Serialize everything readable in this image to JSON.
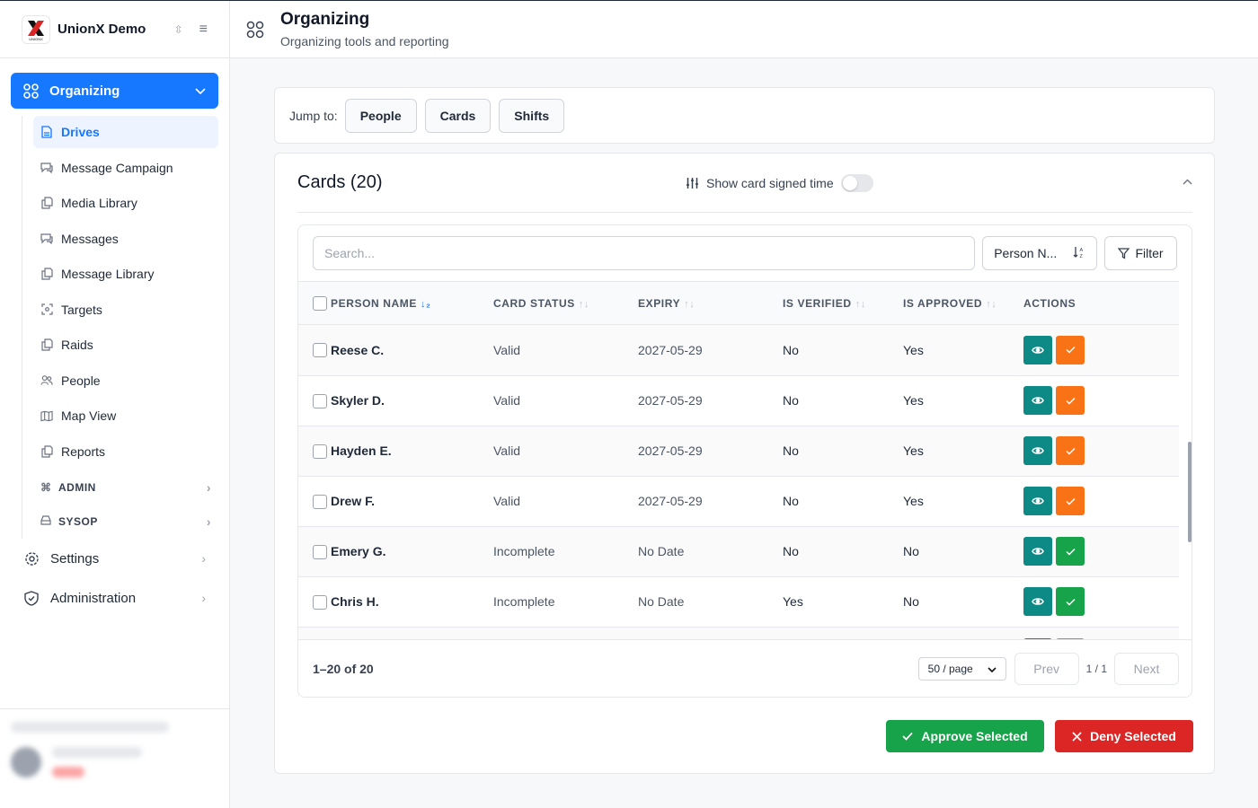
{
  "brand": {
    "name": "UnionX Demo",
    "logo_text": "UNIONX"
  },
  "sidebar": {
    "primary": {
      "label": "Organizing"
    },
    "sub_items": [
      {
        "label": "Drives",
        "icon": "file-icon",
        "active": true
      },
      {
        "label": "Message Campaign",
        "icon": "chat-icon"
      },
      {
        "label": "Media Library",
        "icon": "copy-icon"
      },
      {
        "label": "Messages",
        "icon": "chat-icon"
      },
      {
        "label": "Message Library",
        "icon": "copy-icon"
      },
      {
        "label": "Targets",
        "icon": "target-icon"
      },
      {
        "label": "Raids",
        "icon": "copy-icon"
      },
      {
        "label": "People",
        "icon": "users-icon"
      },
      {
        "label": "Map View",
        "icon": "map-icon"
      },
      {
        "label": "Reports",
        "icon": "copy-icon"
      }
    ],
    "groups": [
      {
        "label": "ADMIN",
        "icon": "command-icon"
      },
      {
        "label": "SYSOP",
        "icon": "drive-icon"
      }
    ],
    "main": [
      {
        "label": "Settings",
        "icon": "gear-icon"
      },
      {
        "label": "Administration",
        "icon": "shield-check-icon"
      }
    ]
  },
  "header": {
    "title": "Organizing",
    "subtitle": "Organizing tools and reporting"
  },
  "jump": {
    "label": "Jump to:",
    "buttons": [
      "People",
      "Cards",
      "Shifts"
    ]
  },
  "cards": {
    "title": "Cards (20)",
    "toggle_label": "Show card signed time",
    "search_placeholder": "Search...",
    "sort_label": "Person N...",
    "filter_label": "Filter",
    "columns": [
      "PERSON NAME",
      "CARD STATUS",
      "EXPIRY",
      "IS VERIFIED",
      "IS APPROVED",
      "ACTIONS"
    ],
    "rows": [
      {
        "name": "Reese C.",
        "status": "Valid",
        "expiry": "2027-05-29",
        "verified": "No",
        "approved": "Yes",
        "action_color": "orange"
      },
      {
        "name": "Skyler D.",
        "status": "Valid",
        "expiry": "2027-05-29",
        "verified": "No",
        "approved": "Yes",
        "action_color": "orange"
      },
      {
        "name": "Hayden E.",
        "status": "Valid",
        "expiry": "2027-05-29",
        "verified": "No",
        "approved": "Yes",
        "action_color": "orange"
      },
      {
        "name": "Drew F.",
        "status": "Valid",
        "expiry": "2027-05-29",
        "verified": "No",
        "approved": "Yes",
        "action_color": "orange"
      },
      {
        "name": "Emery G.",
        "status": "Incomplete",
        "expiry": "No Date",
        "verified": "No",
        "approved": "No",
        "action_color": "green"
      },
      {
        "name": "Chris H.",
        "status": "Incomplete",
        "expiry": "No Date",
        "verified": "Yes",
        "approved": "No",
        "action_color": "green"
      }
    ],
    "range": "1–20 of 20",
    "per_page": "50 / page",
    "prev": "Prev",
    "page": "1 / 1",
    "next": "Next",
    "approve_label": "Approve Selected",
    "deny_label": "Deny Selected"
  },
  "colors": {
    "primary": "#1677ff",
    "view": "#0e8a86",
    "orange": "#f97316",
    "green": "#16a34a",
    "red": "#dc2626"
  }
}
